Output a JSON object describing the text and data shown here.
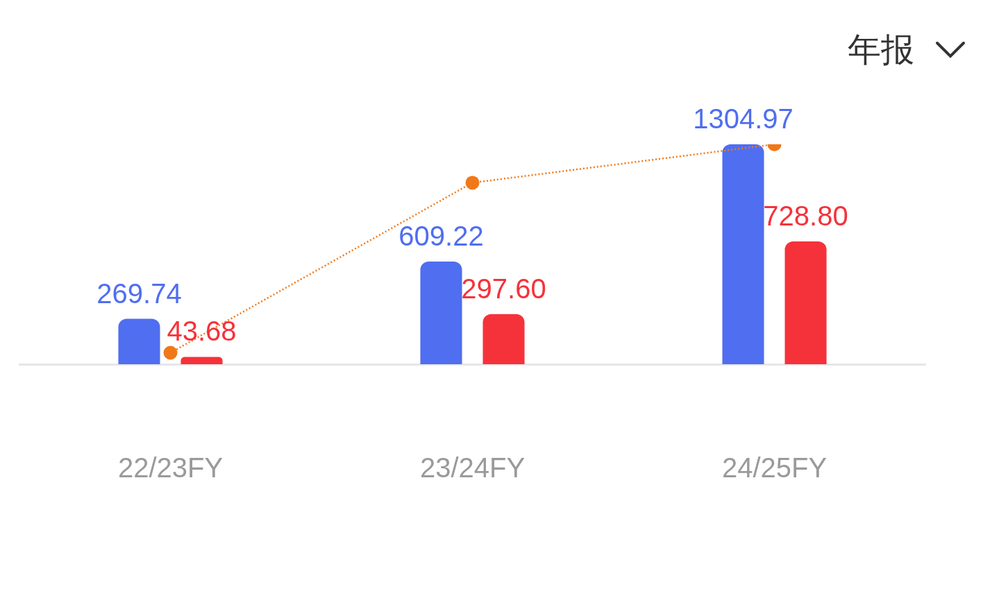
{
  "chart_data": {
    "type": "bar",
    "categories": [
      "22/23FY",
      "23/24FY",
      "24/25FY"
    ],
    "series": [
      {
        "color": "#4f6ef0",
        "values": [
          269.74,
          609.22,
          1304.97
        ],
        "value_labels": [
          "269.74",
          "609.22",
          "1304.97"
        ]
      },
      {
        "color": "#f5323a",
        "values": [
          43.68,
          297.6,
          728.8
        ],
        "value_labels": [
          "43.68",
          "297.60",
          "728.80"
        ]
      },
      {
        "type": "line",
        "color": "#f07818",
        "values": [
          68,
          1077,
          1305
        ],
        "marker": "circle",
        "line_style": "dotted"
      }
    ],
    "tick_labels": "x",
    "grid": false,
    "legend": false,
    "annotations": [
      "年报"
    ]
  }
}
